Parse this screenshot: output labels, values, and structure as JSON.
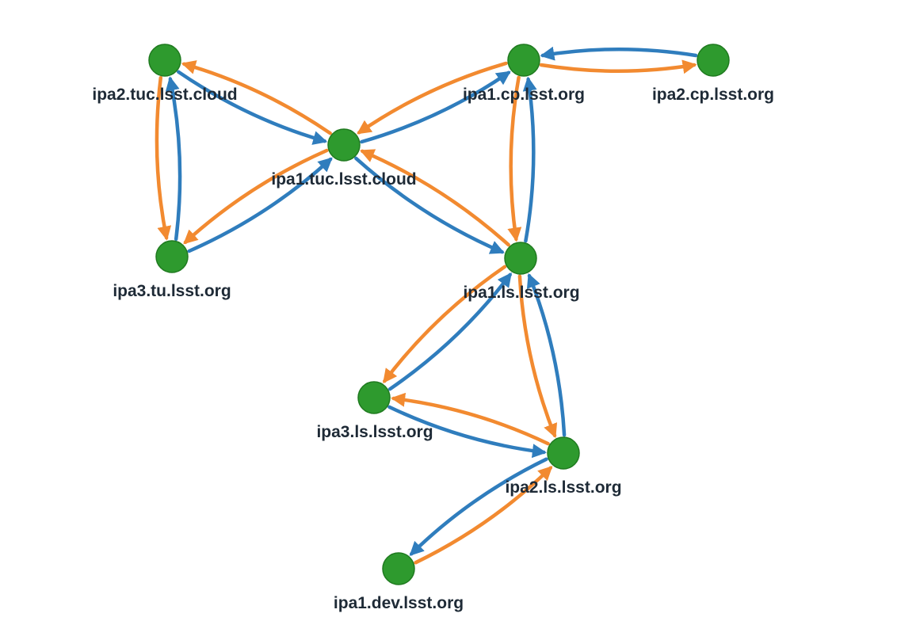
{
  "colors": {
    "node_fill": "#2e9a2e",
    "edge_a": "#f28a30",
    "edge_b": "#2f7dbd",
    "label_text": "#1e2a36"
  },
  "nodes": [
    {
      "id": "ipa2.tuc.lsst.cloud",
      "label": "ipa2.tuc.lsst.cloud"
    },
    {
      "id": "ipa1.tuc.lsst.cloud",
      "label": "ipa1.tuc.lsst.cloud"
    },
    {
      "id": "ipa3.tu.lsst.org",
      "label": "ipa3.tu.lsst.org"
    },
    {
      "id": "ipa1.cp.lsst.org",
      "label": "ipa1.cp.lsst.org"
    },
    {
      "id": "ipa2.cp.lsst.org",
      "label": "ipa2.cp.lsst.org"
    },
    {
      "id": "ipa1.ls.lsst.org",
      "label": "ipa1.ls.lsst.org"
    },
    {
      "id": "ipa3.ls.lsst.org",
      "label": "ipa3.ls.lsst.org"
    },
    {
      "id": "ipa2.ls.lsst.org",
      "label": "ipa2.ls.lsst.org"
    },
    {
      "id": "ipa1.dev.lsst.org",
      "label": "ipa1.dev.lsst.org"
    }
  ],
  "edges": [
    {
      "from": "ipa2.tuc.lsst.cloud",
      "to": "ipa1.tuc.lsst.cloud"
    },
    {
      "from": "ipa1.tuc.lsst.cloud",
      "to": "ipa2.tuc.lsst.cloud"
    },
    {
      "from": "ipa2.tuc.lsst.cloud",
      "to": "ipa3.tu.lsst.org"
    },
    {
      "from": "ipa3.tu.lsst.org",
      "to": "ipa2.tuc.lsst.cloud"
    },
    {
      "from": "ipa1.tuc.lsst.cloud",
      "to": "ipa3.tu.lsst.org"
    },
    {
      "from": "ipa3.tu.lsst.org",
      "to": "ipa1.tuc.lsst.cloud"
    },
    {
      "from": "ipa1.tuc.lsst.cloud",
      "to": "ipa1.cp.lsst.org"
    },
    {
      "from": "ipa1.cp.lsst.org",
      "to": "ipa1.tuc.lsst.cloud"
    },
    {
      "from": "ipa1.tuc.lsst.cloud",
      "to": "ipa1.ls.lsst.org"
    },
    {
      "from": "ipa1.ls.lsst.org",
      "to": "ipa1.tuc.lsst.cloud"
    },
    {
      "from": "ipa1.cp.lsst.org",
      "to": "ipa2.cp.lsst.org"
    },
    {
      "from": "ipa2.cp.lsst.org",
      "to": "ipa1.cp.lsst.org"
    },
    {
      "from": "ipa1.cp.lsst.org",
      "to": "ipa1.ls.lsst.org"
    },
    {
      "from": "ipa1.ls.lsst.org",
      "to": "ipa1.cp.lsst.org"
    },
    {
      "from": "ipa1.ls.lsst.org",
      "to": "ipa3.ls.lsst.org"
    },
    {
      "from": "ipa3.ls.lsst.org",
      "to": "ipa1.ls.lsst.org"
    },
    {
      "from": "ipa1.ls.lsst.org",
      "to": "ipa2.ls.lsst.org"
    },
    {
      "from": "ipa2.ls.lsst.org",
      "to": "ipa1.ls.lsst.org"
    },
    {
      "from": "ipa3.ls.lsst.org",
      "to": "ipa2.ls.lsst.org"
    },
    {
      "from": "ipa2.ls.lsst.org",
      "to": "ipa3.ls.lsst.org"
    },
    {
      "from": "ipa2.ls.lsst.org",
      "to": "ipa1.dev.lsst.org"
    },
    {
      "from": "ipa1.dev.lsst.org",
      "to": "ipa2.ls.lsst.org"
    }
  ]
}
